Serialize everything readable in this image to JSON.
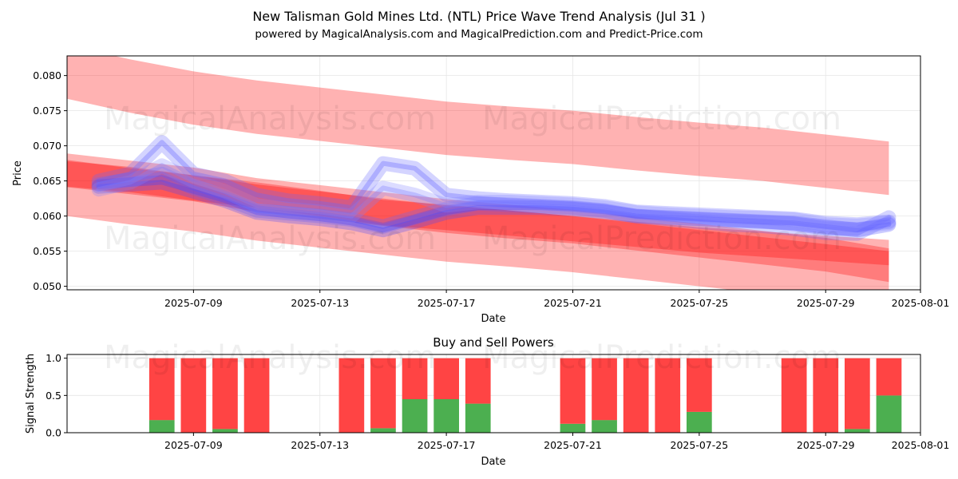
{
  "watermarks": [
    "MagicalAnalysis.com",
    "MagicalPrediction.com"
  ],
  "chart_data": [
    {
      "type": "line",
      "title": "New Talisman Gold Mines Ltd. (NTL) Price Wave Trend Analysis (Jul 31 )",
      "subtitle": "powered by MagicalAnalysis.com and MagicalPrediction.com and Predict-Price.com",
      "xlabel": "Date",
      "ylabel": "Price",
      "xlim": [
        "2025-07-05",
        "2025-08-01"
      ],
      "ylim": [
        0.0495,
        0.0828
      ],
      "x_ticks": [
        "2025-07-09",
        "2025-07-13",
        "2025-07-17",
        "2025-07-21",
        "2025-07-25",
        "2025-07-29",
        "2025-08-01"
      ],
      "y_ticks": [
        "0.050",
        "0.055",
        "0.060",
        "0.065",
        "0.070",
        "0.075",
        "0.080"
      ],
      "grid": true,
      "band_dates": [
        "2025-07-05",
        "2025-07-07",
        "2025-07-09",
        "2025-07-11",
        "2025-07-13",
        "2025-07-15",
        "2025-07-17",
        "2025-07-19",
        "2025-07-21",
        "2025-07-23",
        "2025-07-25",
        "2025-07-27",
        "2025-07-29",
        "2025-07-31"
      ],
      "series": [
        {
          "name": "upper trend band",
          "color": "#ff0000",
          "center": [
            0.0805,
            0.0785,
            0.0768,
            0.0755,
            0.0745,
            0.0735,
            0.0725,
            0.0718,
            0.0712,
            0.0703,
            0.0695,
            0.0688,
            0.0678,
            0.0668
          ],
          "halfwidth": 0.0038
        },
        {
          "name": "middle trend band",
          "color": "#ff0000",
          "center": [
            0.0665,
            0.0655,
            0.0645,
            0.063,
            0.062,
            0.061,
            0.06,
            0.0592,
            0.0585,
            0.0575,
            0.0565,
            0.0555,
            0.0545,
            0.053
          ],
          "halfwidth": 0.0024
        },
        {
          "name": "lower trend band",
          "color": "#ff0000",
          "center": [
            0.064,
            0.0628,
            0.0618,
            0.0605,
            0.0595,
            0.0585,
            0.0575,
            0.0568,
            0.056,
            0.055,
            0.054,
            0.053,
            0.052,
            0.051
          ],
          "halfwidth": 0.004
        },
        {
          "name": "secondary red wave",
          "color": "#ff0000",
          "center": [
            0.066,
            0.0652,
            0.064,
            0.063,
            0.0618,
            0.0605,
            0.0598,
            0.059,
            0.0582,
            0.0574,
            0.0566,
            0.056,
            0.0554,
            0.0548
          ],
          "halfwidth": 0.0018
        }
      ],
      "price_waves": [
        {
          "name": "price wave 1",
          "color": "#6666ff",
          "dates": [
            "2025-07-06",
            "2025-07-07",
            "2025-07-08",
            "2025-07-09",
            "2025-07-10",
            "2025-07-11",
            "2025-07-12",
            "2025-07-13",
            "2025-07-14",
            "2025-07-15",
            "2025-07-16",
            "2025-07-17",
            "2025-07-18",
            "2025-07-19",
            "2025-07-20",
            "2025-07-21",
            "2025-07-22",
            "2025-07-23",
            "2025-07-24",
            "2025-07-25",
            "2025-07-26",
            "2025-07-27",
            "2025-07-28",
            "2025-07-29",
            "2025-07-30",
            "2025-07-31"
          ],
          "values": [
            0.065,
            0.066,
            0.0705,
            0.066,
            0.065,
            0.063,
            0.0622,
            0.0618,
            0.0612,
            0.0675,
            0.0668,
            0.063,
            0.0625,
            0.0622,
            0.062,
            0.0618,
            0.0614,
            0.0606,
            0.0604,
            0.0602,
            0.06,
            0.0598,
            0.0596,
            0.059,
            0.0588,
            0.0592
          ]
        },
        {
          "name": "price wave 2",
          "color": "#6666ff",
          "dates": [
            "2025-07-06",
            "2025-07-07",
            "2025-07-08",
            "2025-07-09",
            "2025-07-10",
            "2025-07-11",
            "2025-07-12",
            "2025-07-13",
            "2025-07-14",
            "2025-07-15",
            "2025-07-16",
            "2025-07-17",
            "2025-07-18",
            "2025-07-19",
            "2025-07-20",
            "2025-07-21",
            "2025-07-22",
            "2025-07-23",
            "2025-07-24",
            "2025-07-25",
            "2025-07-26",
            "2025-07-27",
            "2025-07-28",
            "2025-07-29",
            "2025-07-30",
            "2025-07-31"
          ],
          "values": [
            0.0645,
            0.0652,
            0.066,
            0.064,
            0.0625,
            0.0608,
            0.0604,
            0.06,
            0.0595,
            0.0585,
            0.0598,
            0.061,
            0.0618,
            0.0616,
            0.0614,
            0.0612,
            0.0608,
            0.06,
            0.0596,
            0.0592,
            0.0588,
            0.0586,
            0.0582,
            0.0576,
            0.0575,
            0.0598
          ]
        },
        {
          "name": "price wave 3",
          "color": "#4444ff",
          "dates": [
            "2025-07-06",
            "2025-07-07",
            "2025-07-08",
            "2025-07-09",
            "2025-07-10",
            "2025-07-11",
            "2025-07-12",
            "2025-07-13",
            "2025-07-14",
            "2025-07-15",
            "2025-07-16",
            "2025-07-17",
            "2025-07-18",
            "2025-07-19",
            "2025-07-20",
            "2025-07-21",
            "2025-07-22",
            "2025-07-23",
            "2025-07-24",
            "2025-07-25",
            "2025-07-26",
            "2025-07-27",
            "2025-07-28",
            "2025-07-29",
            "2025-07-30",
            "2025-07-31"
          ],
          "values": [
            0.0642,
            0.0645,
            0.0648,
            0.0635,
            0.0622,
            0.0605,
            0.06,
            0.0596,
            0.059,
            0.058,
            0.0592,
            0.0605,
            0.0612,
            0.0612,
            0.0612,
            0.061,
            0.0606,
            0.06,
            0.0598,
            0.0596,
            0.0594,
            0.0592,
            0.059,
            0.0585,
            0.058,
            0.0588
          ]
        },
        {
          "name": "price wave 4",
          "color": "#8080ff",
          "dates": [
            "2025-07-06",
            "2025-07-07",
            "2025-07-08",
            "2025-07-09",
            "2025-07-10",
            "2025-07-11",
            "2025-07-12",
            "2025-07-13",
            "2025-07-14",
            "2025-07-15",
            "2025-07-16",
            "2025-07-17",
            "2025-07-18",
            "2025-07-19",
            "2025-07-20",
            "2025-07-21",
            "2025-07-22",
            "2025-07-23",
            "2025-07-24",
            "2025-07-25",
            "2025-07-26",
            "2025-07-27",
            "2025-07-28",
            "2025-07-29",
            "2025-07-30",
            "2025-07-31"
          ],
          "values": [
            0.0638,
            0.0648,
            0.0672,
            0.065,
            0.0635,
            0.0615,
            0.061,
            0.0606,
            0.06,
            0.064,
            0.063,
            0.0615,
            0.062,
            0.062,
            0.0618,
            0.0616,
            0.0612,
            0.0605,
            0.0602,
            0.06,
            0.0598,
            0.0597,
            0.0595,
            0.0588,
            0.0586,
            0.059
          ]
        }
      ]
    },
    {
      "type": "bar",
      "title": "Buy and Sell Powers",
      "xlabel": "Date",
      "ylabel": "Signal Strength",
      "xlim": [
        "2025-07-05",
        "2025-08-01"
      ],
      "ylim": [
        0,
        1.05
      ],
      "x_ticks": [
        "2025-07-09",
        "2025-07-13",
        "2025-07-17",
        "2025-07-21",
        "2025-07-25",
        "2025-07-29",
        "2025-08-01"
      ],
      "y_ticks": [
        "0.0",
        "0.5",
        "1.0"
      ],
      "grid": true,
      "dates": [
        "2025-07-08",
        "2025-07-09",
        "2025-07-10",
        "2025-07-11",
        "2025-07-14",
        "2025-07-15",
        "2025-07-16",
        "2025-07-17",
        "2025-07-18",
        "2025-07-21",
        "2025-07-22",
        "2025-07-23",
        "2025-07-24",
        "2025-07-25",
        "2025-07-28",
        "2025-07-29",
        "2025-07-30",
        "2025-07-31"
      ],
      "series": [
        {
          "name": "Buy power",
          "color": "#4caf50",
          "values": [
            0.17,
            0.0,
            0.05,
            0.0,
            0.0,
            0.06,
            0.45,
            0.45,
            0.39,
            0.12,
            0.17,
            0.0,
            0.0,
            0.28,
            0.0,
            0.0,
            0.05,
            0.5
          ]
        },
        {
          "name": "Sell power",
          "color": "#ff4444",
          "values": [
            0.83,
            1.0,
            0.95,
            1.0,
            1.0,
            0.94,
            0.55,
            0.55,
            0.61,
            0.88,
            0.83,
            1.0,
            1.0,
            0.72,
            1.0,
            1.0,
            0.95,
            0.5
          ]
        }
      ]
    }
  ]
}
